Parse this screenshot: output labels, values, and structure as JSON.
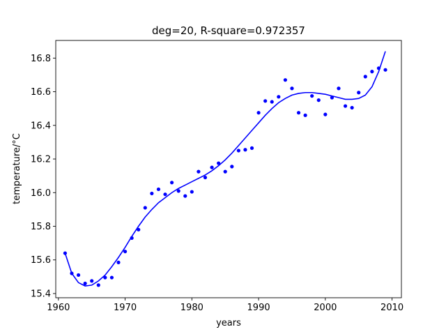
{
  "chart_data": {
    "type": "scatter",
    "title": "deg=20, R-square=0.972357",
    "xlabel": "years",
    "ylabel": "temperature/°C",
    "xlim": [
      1959.6,
      2011.4
    ],
    "ylim": [
      15.375,
      16.905
    ],
    "xticks": [
      1960,
      1970,
      1980,
      1990,
      2000,
      2010
    ],
    "yticks": [
      15.4,
      15.6,
      15.8,
      16.0,
      16.2,
      16.4,
      16.6,
      16.8
    ],
    "grid": false,
    "color": "#0000ff",
    "series": [
      {
        "kind": "points",
        "x": [
          1961,
          1962,
          1963,
          1964,
          1965,
          1966,
          1967,
          1968,
          1969,
          1970,
          1971,
          1972,
          1973,
          1974,
          1975,
          1976,
          1977,
          1978,
          1979,
          1980,
          1981,
          1982,
          1983,
          1984,
          1985,
          1986,
          1987,
          1988,
          1989,
          1990,
          1991,
          1992,
          1993,
          1994,
          1995,
          1996,
          1997,
          1998,
          1999,
          2000,
          2001,
          2002,
          2003,
          2004,
          2005,
          2006,
          2007,
          2008,
          2009
        ],
        "y": [
          15.64,
          15.52,
          15.51,
          15.46,
          15.475,
          15.45,
          15.495,
          15.495,
          15.585,
          15.65,
          15.73,
          15.78,
          15.91,
          15.995,
          16.02,
          15.99,
          16.06,
          16.01,
          15.98,
          16.005,
          16.125,
          16.09,
          16.15,
          16.175,
          16.125,
          16.155,
          16.25,
          16.255,
          16.265,
          16.475,
          16.545,
          16.54,
          16.57,
          16.67,
          16.62,
          16.475,
          16.46,
          16.575,
          16.55,
          16.465,
          16.565,
          16.62,
          16.515,
          16.505,
          16.595,
          16.69,
          16.72,
          16.74,
          16.73
        ]
      },
      {
        "kind": "fit-curve",
        "x": [
          1961,
          1962,
          1963,
          1964,
          1965,
          1966,
          1967,
          1968,
          1969,
          1970,
          1971,
          1972,
          1973,
          1974,
          1975,
          1976,
          1977,
          1978,
          1979,
          1980,
          1981,
          1982,
          1983,
          1984,
          1985,
          1986,
          1987,
          1988,
          1989,
          1990,
          1991,
          1992,
          1993,
          1994,
          1995,
          1996,
          1997,
          1998,
          1999,
          2000,
          2001,
          2002,
          2003,
          2004,
          2005,
          2006,
          2007,
          2008,
          2009
        ],
        "y": [
          15.64,
          15.52,
          15.465,
          15.445,
          15.45,
          15.475,
          15.51,
          15.56,
          15.615,
          15.675,
          15.74,
          15.8,
          15.855,
          15.9,
          15.94,
          15.97,
          16.0,
          16.025,
          16.045,
          16.065,
          16.085,
          16.105,
          16.13,
          16.16,
          16.195,
          16.235,
          16.28,
          16.325,
          16.37,
          16.415,
          16.46,
          16.5,
          16.535,
          16.56,
          16.58,
          16.59,
          16.595,
          16.595,
          16.59,
          16.585,
          16.575,
          16.565,
          16.555,
          16.555,
          16.56,
          16.58,
          16.63,
          16.72,
          16.84
        ]
      }
    ]
  }
}
